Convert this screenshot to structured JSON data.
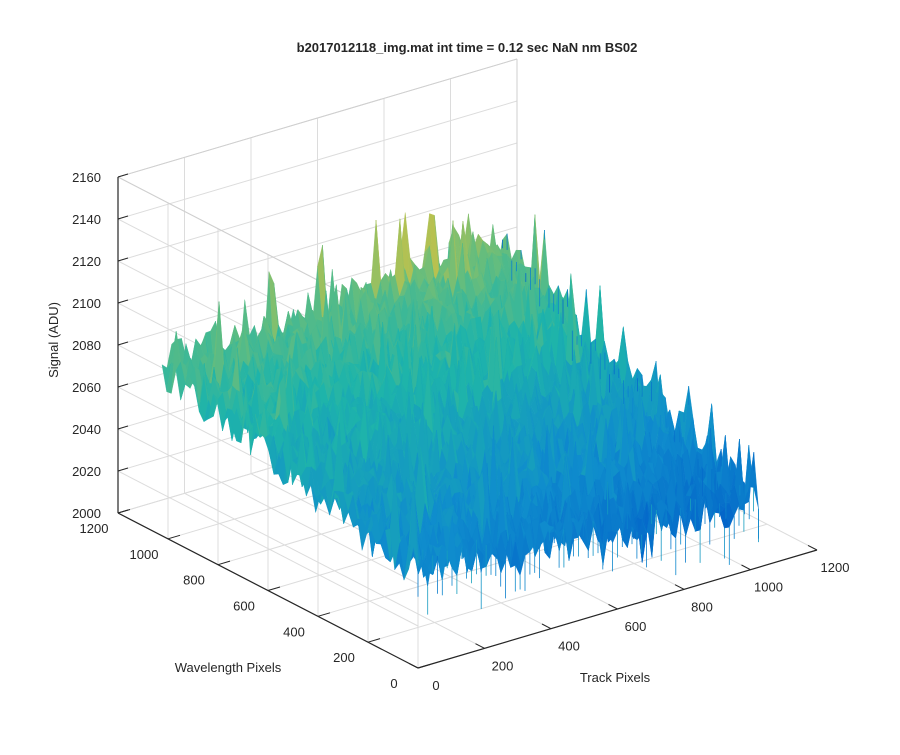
{
  "chart_data": {
    "type": "surface",
    "title": "b2017012118_img.mat int time = 0.12 sec  NaN nm BS02",
    "xlabel": "Track Pixels",
    "ylabel": "Wavelength Pixels",
    "zlabel": "Signal (ADU)",
    "xlim": [
      0,
      1200
    ],
    "ylim": [
      0,
      1200
    ],
    "zlim": [
      2000,
      2160
    ],
    "xticks": [
      "0",
      "200",
      "400",
      "600",
      "800",
      "1000",
      "1200"
    ],
    "yticks": [
      "0",
      "200",
      "400",
      "600",
      "800",
      "1000",
      "1200"
    ],
    "zticks": [
      "2000",
      "2020",
      "2040",
      "2060",
      "2080",
      "2100",
      "2120",
      "2140",
      "2160"
    ],
    "grid": true,
    "colormap": "parula",
    "data_extent": {
      "track_pixels": [
        0,
        1024
      ],
      "wavelength_pixels": [
        0,
        1024
      ]
    },
    "signal_summary": {
      "mean_at_track_0_wavelength_1024": 2080,
      "mean_at_track_1024_wavelength_1024": 2090,
      "mean_at_track_0_wavelength_0": 2045,
      "mean_at_track_1024_wavelength_0": 2030,
      "noise_peak_to_peak": 60,
      "max_spike": 2143,
      "min_value": 2015
    }
  },
  "colors": {
    "background": "#ffffff",
    "axis": "#262626",
    "grid": "#dcdcdc",
    "surface_low": "#0072bd",
    "surface_mid": "#21b5a8",
    "surface_high": "#e8c33a"
  }
}
